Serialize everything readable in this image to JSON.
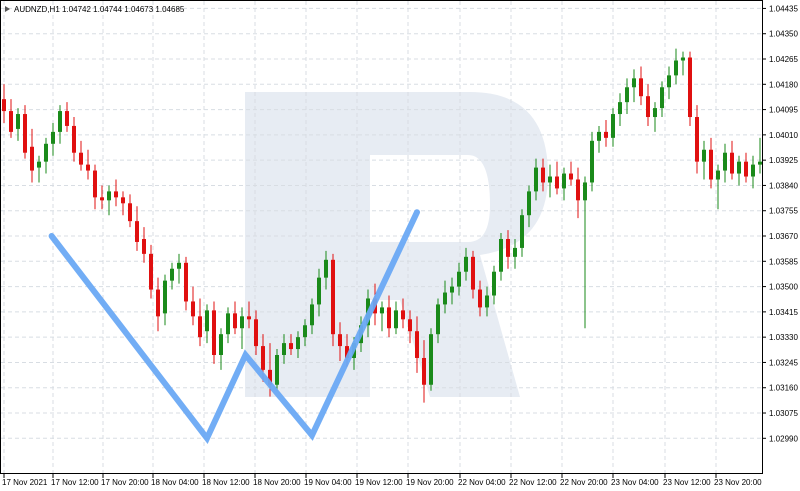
{
  "header": {
    "symbol_tf": "AUDNZD,H1",
    "quote": "1.04742 1.04744 1.04673 1.04685"
  },
  "colors": {
    "bull": "#1a8a1a",
    "bear": "#e01010",
    "pattern": "#6aa9f4",
    "grid": "#d8dde3",
    "watermark": "#e7ecf3"
  },
  "chart_data": {
    "type": "candlestick",
    "title": "AUDNZD,H1 1.04742 1.04744 1.04673 1.04685",
    "ylim": [
      1.0287,
      1.0446
    ],
    "yticks": [
      "1.04435",
      "1.04350",
      "1.04265",
      "1.04180",
      "1.04095",
      "1.04010",
      "1.03925",
      "1.03840",
      "1.03755",
      "1.03670",
      "1.03585",
      "1.03500",
      "1.03415",
      "1.03330",
      "1.03245",
      "1.03160",
      "1.03075",
      "1.02990"
    ],
    "xticks": [
      "17 Nov 2021",
      "17 Nov 12:00",
      "17 Nov 20:00",
      "18 Nov 04:00",
      "18 Nov 12:00",
      "18 Nov 20:00",
      "19 Nov 04:00",
      "19 Nov 12:00",
      "19 Nov 20:00",
      "22 Nov 04:00",
      "22 Nov 12:00",
      "22 Nov 20:00",
      "23 Nov 04:00",
      "23 Nov 12:00",
      "23 Nov 20:00"
    ],
    "candles": [
      {
        "o": 1.0413,
        "h": 1.0418,
        "l": 1.0405,
        "c": 1.0409
      },
      {
        "o": 1.0409,
        "h": 1.0413,
        "l": 1.04,
        "c": 1.0402
      },
      {
        "o": 1.0403,
        "h": 1.041,
        "l": 1.0399,
        "c": 1.0408
      },
      {
        "o": 1.0408,
        "h": 1.0411,
        "l": 1.0393,
        "c": 1.0395
      },
      {
        "o": 1.0397,
        "h": 1.0403,
        "l": 1.0385,
        "c": 1.0389
      },
      {
        "o": 1.039,
        "h": 1.0394,
        "l": 1.0385,
        "c": 1.0392
      },
      {
        "o": 1.0392,
        "h": 1.04,
        "l": 1.0388,
        "c": 1.0398
      },
      {
        "o": 1.0398,
        "h": 1.0405,
        "l": 1.0394,
        "c": 1.0402
      },
      {
        "o": 1.0402,
        "h": 1.0411,
        "l": 1.0398,
        "c": 1.0409
      },
      {
        "o": 1.0409,
        "h": 1.0412,
        "l": 1.0402,
        "c": 1.0404
      },
      {
        "o": 1.0404,
        "h": 1.0407,
        "l": 1.0392,
        "c": 1.0395
      },
      {
        "o": 1.0395,
        "h": 1.0399,
        "l": 1.0389,
        "c": 1.0391
      },
      {
        "o": 1.0391,
        "h": 1.0396,
        "l": 1.0386,
        "c": 1.0389
      },
      {
        "o": 1.0389,
        "h": 1.0391,
        "l": 1.0376,
        "c": 1.038
      },
      {
        "o": 1.038,
        "h": 1.0384,
        "l": 1.0376,
        "c": 1.0379
      },
      {
        "o": 1.0379,
        "h": 1.0384,
        "l": 1.0374,
        "c": 1.0382
      },
      {
        "o": 1.0382,
        "h": 1.0386,
        "l": 1.0377,
        "c": 1.038
      },
      {
        "o": 1.038,
        "h": 1.0382,
        "l": 1.0374,
        "c": 1.0378
      },
      {
        "o": 1.0378,
        "h": 1.0381,
        "l": 1.037,
        "c": 1.0372
      },
      {
        "o": 1.0372,
        "h": 1.0377,
        "l": 1.0362,
        "c": 1.0365
      },
      {
        "o": 1.0366,
        "h": 1.037,
        "l": 1.0358,
        "c": 1.0361
      },
      {
        "o": 1.0361,
        "h": 1.0364,
        "l": 1.0346,
        "c": 1.0349
      },
      {
        "o": 1.0349,
        "h": 1.0353,
        "l": 1.0335,
        "c": 1.034
      },
      {
        "o": 1.0341,
        "h": 1.0354,
        "l": 1.0337,
        "c": 1.0352
      },
      {
        "o": 1.0352,
        "h": 1.0358,
        "l": 1.0349,
        "c": 1.0356
      },
      {
        "o": 1.0356,
        "h": 1.0361,
        "l": 1.0351,
        "c": 1.0358
      },
      {
        "o": 1.0358,
        "h": 1.036,
        "l": 1.0342,
        "c": 1.0345
      },
      {
        "o": 1.0345,
        "h": 1.035,
        "l": 1.0337,
        "c": 1.034
      },
      {
        "o": 1.034,
        "h": 1.0346,
        "l": 1.033,
        "c": 1.0333
      },
      {
        "o": 1.0335,
        "h": 1.0344,
        "l": 1.0331,
        "c": 1.0342
      },
      {
        "o": 1.0342,
        "h": 1.0345,
        "l": 1.0324,
        "c": 1.0327
      },
      {
        "o": 1.0327,
        "h": 1.0336,
        "l": 1.0322,
        "c": 1.0334
      },
      {
        "o": 1.0334,
        "h": 1.0343,
        "l": 1.0331,
        "c": 1.0341
      },
      {
        "o": 1.0341,
        "h": 1.0345,
        "l": 1.0334,
        "c": 1.0336
      },
      {
        "o": 1.0336,
        "h": 1.0343,
        "l": 1.0329,
        "c": 1.034
      },
      {
        "o": 1.034,
        "h": 1.0345,
        "l": 1.0336,
        "c": 1.0339
      },
      {
        "o": 1.0339,
        "h": 1.0342,
        "l": 1.0327,
        "c": 1.033
      },
      {
        "o": 1.033,
        "h": 1.0334,
        "l": 1.0318,
        "c": 1.0322
      },
      {
        "o": 1.0322,
        "h": 1.0331,
        "l": 1.0313,
        "c": 1.0317
      },
      {
        "o": 1.0317,
        "h": 1.0329,
        "l": 1.0315,
        "c": 1.0327
      },
      {
        "o": 1.0327,
        "h": 1.0334,
        "l": 1.0324,
        "c": 1.0331
      },
      {
        "o": 1.0331,
        "h": 1.0334,
        "l": 1.0327,
        "c": 1.0329
      },
      {
        "o": 1.0329,
        "h": 1.0335,
        "l": 1.0326,
        "c": 1.0333
      },
      {
        "o": 1.0333,
        "h": 1.0339,
        "l": 1.033,
        "c": 1.0337
      },
      {
        "o": 1.0337,
        "h": 1.0346,
        "l": 1.0334,
        "c": 1.0344
      },
      {
        "o": 1.0344,
        "h": 1.0356,
        "l": 1.034,
        "c": 1.0353
      },
      {
        "o": 1.0353,
        "h": 1.0362,
        "l": 1.0349,
        "c": 1.0359
      },
      {
        "o": 1.0359,
        "h": 1.0361,
        "l": 1.033,
        "c": 1.0334
      },
      {
        "o": 1.0334,
        "h": 1.0338,
        "l": 1.0325,
        "c": 1.033
      },
      {
        "o": 1.033,
        "h": 1.0334,
        "l": 1.0323,
        "c": 1.0326
      },
      {
        "o": 1.0326,
        "h": 1.0333,
        "l": 1.0322,
        "c": 1.0331
      },
      {
        "o": 1.0331,
        "h": 1.034,
        "l": 1.0328,
        "c": 1.0337
      },
      {
        "o": 1.0337,
        "h": 1.0349,
        "l": 1.0333,
        "c": 1.0346
      },
      {
        "o": 1.0346,
        "h": 1.0351,
        "l": 1.0337,
        "c": 1.0341
      },
      {
        "o": 1.0341,
        "h": 1.0345,
        "l": 1.0335,
        "c": 1.0343
      },
      {
        "o": 1.0343,
        "h": 1.0347,
        "l": 1.0333,
        "c": 1.0336
      },
      {
        "o": 1.0336,
        "h": 1.0345,
        "l": 1.0334,
        "c": 1.0342
      },
      {
        "o": 1.0342,
        "h": 1.0346,
        "l": 1.0336,
        "c": 1.0339
      },
      {
        "o": 1.0339,
        "h": 1.0342,
        "l": 1.0331,
        "c": 1.0335
      },
      {
        "o": 1.0335,
        "h": 1.034,
        "l": 1.0321,
        "c": 1.0326
      },
      {
        "o": 1.0326,
        "h": 1.0332,
        "l": 1.0311,
        "c": 1.0317
      },
      {
        "o": 1.0317,
        "h": 1.0336,
        "l": 1.0315,
        "c": 1.0334
      },
      {
        "o": 1.0334,
        "h": 1.0346,
        "l": 1.0331,
        "c": 1.0344
      },
      {
        "o": 1.0344,
        "h": 1.0352,
        "l": 1.0341,
        "c": 1.0348
      },
      {
        "o": 1.0348,
        "h": 1.0353,
        "l": 1.0344,
        "c": 1.035
      },
      {
        "o": 1.035,
        "h": 1.0358,
        "l": 1.0347,
        "c": 1.0355
      },
      {
        "o": 1.0355,
        "h": 1.0363,
        "l": 1.0352,
        "c": 1.036
      },
      {
        "o": 1.036,
        "h": 1.0362,
        "l": 1.0346,
        "c": 1.0349
      },
      {
        "o": 1.0349,
        "h": 1.0352,
        "l": 1.034,
        "c": 1.0343
      },
      {
        "o": 1.0343,
        "h": 1.035,
        "l": 1.034,
        "c": 1.0347
      },
      {
        "o": 1.0347,
        "h": 1.0357,
        "l": 1.0344,
        "c": 1.0355
      },
      {
        "o": 1.0355,
        "h": 1.0368,
        "l": 1.0352,
        "c": 1.0366
      },
      {
        "o": 1.0366,
        "h": 1.0369,
        "l": 1.0356,
        "c": 1.036
      },
      {
        "o": 1.036,
        "h": 1.0366,
        "l": 1.0356,
        "c": 1.0363
      },
      {
        "o": 1.0363,
        "h": 1.0376,
        "l": 1.036,
        "c": 1.0374
      },
      {
        "o": 1.0374,
        "h": 1.0384,
        "l": 1.037,
        "c": 1.0382
      },
      {
        "o": 1.0382,
        "h": 1.0393,
        "l": 1.0379,
        "c": 1.039
      },
      {
        "o": 1.039,
        "h": 1.0393,
        "l": 1.0382,
        "c": 1.0385
      },
      {
        "o": 1.0385,
        "h": 1.0391,
        "l": 1.038,
        "c": 1.0387
      },
      {
        "o": 1.0387,
        "h": 1.0392,
        "l": 1.0381,
        "c": 1.0383
      },
      {
        "o": 1.0383,
        "h": 1.039,
        "l": 1.0379,
        "c": 1.0388
      },
      {
        "o": 1.0388,
        "h": 1.0392,
        "l": 1.0384,
        "c": 1.0386
      },
      {
        "o": 1.0386,
        "h": 1.039,
        "l": 1.0373,
        "c": 1.0379
      },
      {
        "o": 1.0379,
        "h": 1.0387,
        "l": 1.0336,
        "c": 1.0385
      },
      {
        "o": 1.0385,
        "h": 1.0402,
        "l": 1.0382,
        "c": 1.0399
      },
      {
        "o": 1.0399,
        "h": 1.0404,
        "l": 1.0395,
        "c": 1.0402
      },
      {
        "o": 1.0402,
        "h": 1.0406,
        "l": 1.0397,
        "c": 1.04
      },
      {
        "o": 1.04,
        "h": 1.041,
        "l": 1.0397,
        "c": 1.0408
      },
      {
        "o": 1.0408,
        "h": 1.0415,
        "l": 1.0404,
        "c": 1.0412
      },
      {
        "o": 1.0412,
        "h": 1.042,
        "l": 1.0408,
        "c": 1.0417
      },
      {
        "o": 1.0417,
        "h": 1.0423,
        "l": 1.0412,
        "c": 1.042
      },
      {
        "o": 1.042,
        "h": 1.0424,
        "l": 1.0411,
        "c": 1.0414
      },
      {
        "o": 1.0414,
        "h": 1.0418,
        "l": 1.0404,
        "c": 1.0407
      },
      {
        "o": 1.0407,
        "h": 1.0412,
        "l": 1.0402,
        "c": 1.041
      },
      {
        "o": 1.041,
        "h": 1.0419,
        "l": 1.0407,
        "c": 1.0417
      },
      {
        "o": 1.0417,
        "h": 1.0424,
        "l": 1.0413,
        "c": 1.0421
      },
      {
        "o": 1.0421,
        "h": 1.043,
        "l": 1.0418,
        "c": 1.0426
      },
      {
        "o": 1.0426,
        "h": 1.0429,
        "l": 1.0421,
        "c": 1.0427
      },
      {
        "o": 1.0427,
        "h": 1.0429,
        "l": 1.0404,
        "c": 1.0407
      },
      {
        "o": 1.0407,
        "h": 1.0411,
        "l": 1.0388,
        "c": 1.0392
      },
      {
        "o": 1.0392,
        "h": 1.0399,
        "l": 1.0386,
        "c": 1.0396
      },
      {
        "o": 1.0396,
        "h": 1.04,
        "l": 1.0383,
        "c": 1.0386
      },
      {
        "o": 1.0386,
        "h": 1.0391,
        "l": 1.0376,
        "c": 1.0389
      },
      {
        "o": 1.0389,
        "h": 1.0398,
        "l": 1.0385,
        "c": 1.0395
      },
      {
        "o": 1.0395,
        "h": 1.0399,
        "l": 1.0386,
        "c": 1.0388
      },
      {
        "o": 1.0388,
        "h": 1.0394,
        "l": 1.0384,
        "c": 1.0392
      },
      {
        "o": 1.0392,
        "h": 1.0395,
        "l": 1.0385,
        "c": 1.0387
      },
      {
        "o": 1.0387,
        "h": 1.0394,
        "l": 1.0383,
        "c": 1.0391
      },
      {
        "o": 1.0391,
        "h": 1.04,
        "l": 1.0388,
        "c": 1.0392
      }
    ],
    "pattern_w_index": [
      6.8,
      29.0,
      34.5,
      44.0,
      59.0
    ],
    "pattern_w_price": [
      1.0367,
      1.0299,
      1.0327,
      1.03,
      1.0375
    ],
    "grid": true
  }
}
